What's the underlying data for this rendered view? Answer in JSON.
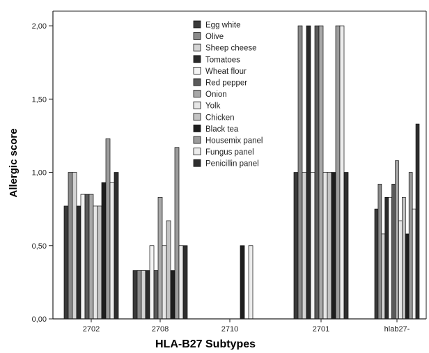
{
  "chart_data": {
    "type": "bar",
    "xlabel": "HLA-B27 Subtypes",
    "ylabel": "Allergic score",
    "ylim": [
      0,
      2.1
    ],
    "yticks": [
      "0,00",
      "0,50",
      "1,00",
      "1,50",
      "2,00"
    ],
    "ytick_values": [
      0,
      0.5,
      1.0,
      1.5,
      2.0
    ],
    "grid": false,
    "legend_position": "top-center",
    "categories": [
      "2702",
      "2708",
      "2710",
      "2701",
      "hlab27-"
    ],
    "series": [
      {
        "name": "Egg white",
        "color": "#3a3a3a",
        "values": [
          0.77,
          0.33,
          null,
          1.0,
          0.75
        ]
      },
      {
        "name": "Olive",
        "color": "#8a8a8a",
        "values": [
          1.0,
          0.33,
          null,
          2.0,
          0.92
        ]
      },
      {
        "name": "Sheep cheese",
        "color": "#d4d4d4",
        "values": [
          1.0,
          0.33,
          null,
          1.0,
          0.58
        ]
      },
      {
        "name": "Tomatoes",
        "color": "#2a2a2a",
        "values": [
          0.77,
          0.33,
          null,
          2.0,
          0.83
        ]
      },
      {
        "name": "Wheat flour",
        "color": "#f4f4f4",
        "values": [
          0.85,
          0.5,
          null,
          1.0,
          0.83
        ]
      },
      {
        "name": "Red pepper",
        "color": "#5a5a5a",
        "values": [
          0.85,
          0.33,
          null,
          2.0,
          0.92
        ]
      },
      {
        "name": "Onion",
        "color": "#a8a8a8",
        "values": [
          0.85,
          0.83,
          null,
          2.0,
          1.08
        ]
      },
      {
        "name": "Yolk",
        "color": "#e6e6e6",
        "values": [
          0.77,
          0.5,
          null,
          1.0,
          0.67
        ]
      },
      {
        "name": "Chicken",
        "color": "#c4c4c4",
        "values": [
          0.77,
          0.67,
          null,
          1.0,
          0.83
        ]
      },
      {
        "name": "Black tea",
        "color": "#1e1e1e",
        "values": [
          0.93,
          0.33,
          0.5,
          1.0,
          0.58
        ]
      },
      {
        "name": "Housemix panel",
        "color": "#9c9c9c",
        "values": [
          1.23,
          1.17,
          null,
          2.0,
          1.0
        ]
      },
      {
        "name": "Fungus panel",
        "color": "#ececec",
        "values": [
          0.93,
          0.5,
          0.5,
          2.0,
          0.75
        ]
      },
      {
        "name": "Penicillin panel",
        "color": "#2e2e2e",
        "values": [
          1.0,
          0.5,
          null,
          1.0,
          1.33
        ]
      }
    ]
  }
}
